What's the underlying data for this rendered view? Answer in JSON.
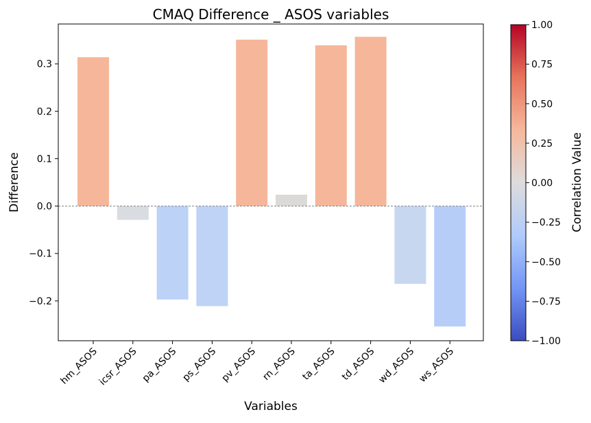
{
  "chart_data": {
    "type": "bar",
    "title": "CMAQ Difference _ ASOS variables",
    "xlabel": "Variables",
    "ylabel": "Difference",
    "categories": [
      "hm_ASOS",
      "icsr_ASOS",
      "pa_ASOS",
      "ps_ASOS",
      "pv_ASOS",
      "rn_ASOS",
      "ta_ASOS",
      "td_ASOS",
      "wd_ASOS",
      "ws_ASOS"
    ],
    "values": [
      0.314,
      -0.029,
      -0.197,
      -0.211,
      0.351,
      0.024,
      0.339,
      0.357,
      -0.164,
      -0.254
    ],
    "ylim": [
      -0.284,
      0.384
    ],
    "yticks": [
      -0.2,
      -0.1,
      0.0,
      0.1,
      0.2,
      0.3
    ],
    "ytick_labels": [
      "−0.2",
      "−0.1",
      "0.0",
      "0.1",
      "0.2",
      "0.3"
    ],
    "bar_colors": [
      "#f6b69a",
      "#d9dce1",
      "#bcd2f7",
      "#bed3f6",
      "#f6b69a",
      "#dcdad8",
      "#f6b69a",
      "#f6b69a",
      "#c7d7f0",
      "#b6cdf8"
    ],
    "zero_line": true,
    "grid": false,
    "colorbar": {
      "label": "Correlation Value",
      "range": [
        -1.0,
        1.0
      ],
      "ticks": [
        1.0,
        0.75,
        0.5,
        0.25,
        0.0,
        -0.25,
        -0.5,
        -0.75,
        -1.0
      ],
      "tick_labels": [
        "1.00",
        "0.75",
        "0.50",
        "0.25",
        "0.00",
        "−0.25",
        "−0.50",
        "−0.75",
        "−1.00"
      ],
      "colormap": "coolwarm",
      "colors": [
        "#3b4cc0",
        "#7396f5",
        "#b0cbfc",
        "#dddcdc",
        "#f6b89c",
        "#e7745b",
        "#b40426"
      ]
    }
  }
}
